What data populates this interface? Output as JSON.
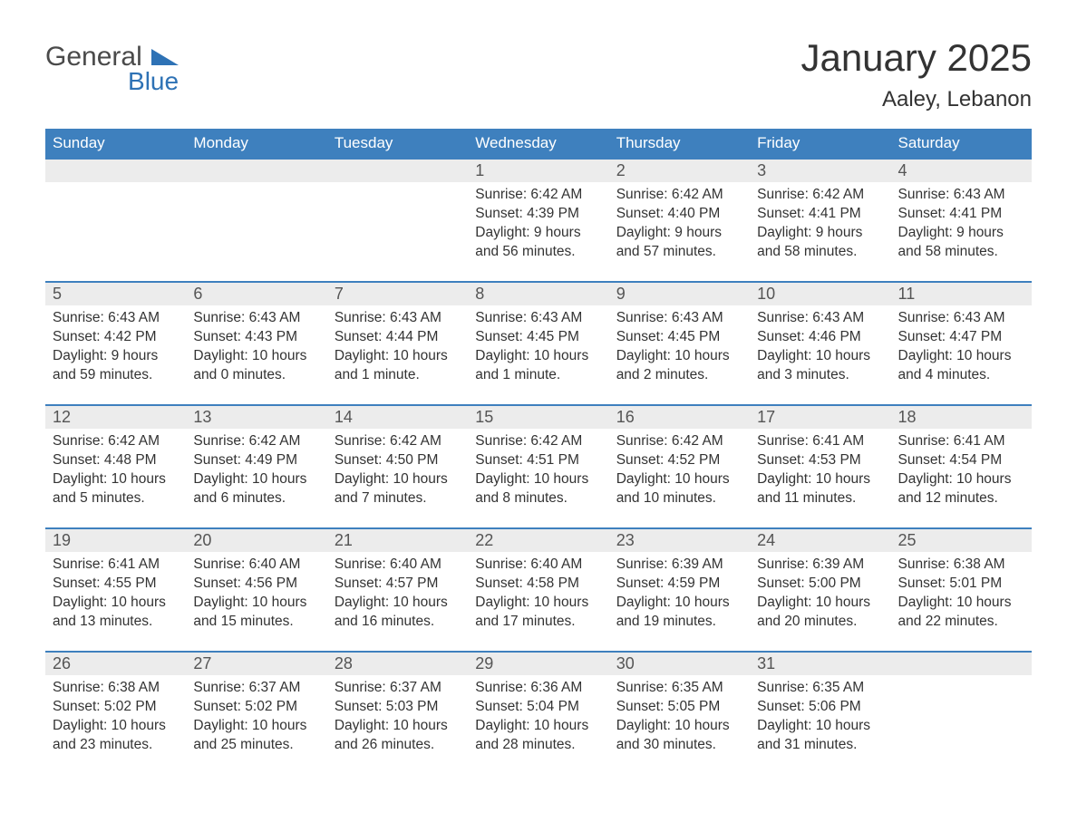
{
  "logo": {
    "word1": "General",
    "word2": "Blue"
  },
  "title": "January 2025",
  "location": "Aaley, Lebanon",
  "colors": {
    "header_bg": "#3e80be",
    "header_text": "#ffffff",
    "daynum_bg": "#ececec",
    "row_border": "#3e80be",
    "body_text": "#333333",
    "logo_gray": "#4a4a4a",
    "logo_blue": "#2e72b5",
    "page_bg": "#ffffff"
  },
  "weekdays": [
    "Sunday",
    "Monday",
    "Tuesday",
    "Wednesday",
    "Thursday",
    "Friday",
    "Saturday"
  ],
  "weeks": [
    [
      null,
      null,
      null,
      {
        "n": "1",
        "sr": "Sunrise: 6:42 AM",
        "ss": "Sunset: 4:39 PM",
        "d1": "Daylight: 9 hours",
        "d2": "and 56 minutes."
      },
      {
        "n": "2",
        "sr": "Sunrise: 6:42 AM",
        "ss": "Sunset: 4:40 PM",
        "d1": "Daylight: 9 hours",
        "d2": "and 57 minutes."
      },
      {
        "n": "3",
        "sr": "Sunrise: 6:42 AM",
        "ss": "Sunset: 4:41 PM",
        "d1": "Daylight: 9 hours",
        "d2": "and 58 minutes."
      },
      {
        "n": "4",
        "sr": "Sunrise: 6:43 AM",
        "ss": "Sunset: 4:41 PM",
        "d1": "Daylight: 9 hours",
        "d2": "and 58 minutes."
      }
    ],
    [
      {
        "n": "5",
        "sr": "Sunrise: 6:43 AM",
        "ss": "Sunset: 4:42 PM",
        "d1": "Daylight: 9 hours",
        "d2": "and 59 minutes."
      },
      {
        "n": "6",
        "sr": "Sunrise: 6:43 AM",
        "ss": "Sunset: 4:43 PM",
        "d1": "Daylight: 10 hours",
        "d2": "and 0 minutes."
      },
      {
        "n": "7",
        "sr": "Sunrise: 6:43 AM",
        "ss": "Sunset: 4:44 PM",
        "d1": "Daylight: 10 hours",
        "d2": "and 1 minute."
      },
      {
        "n": "8",
        "sr": "Sunrise: 6:43 AM",
        "ss": "Sunset: 4:45 PM",
        "d1": "Daylight: 10 hours",
        "d2": "and 1 minute."
      },
      {
        "n": "9",
        "sr": "Sunrise: 6:43 AM",
        "ss": "Sunset: 4:45 PM",
        "d1": "Daylight: 10 hours",
        "d2": "and 2 minutes."
      },
      {
        "n": "10",
        "sr": "Sunrise: 6:43 AM",
        "ss": "Sunset: 4:46 PM",
        "d1": "Daylight: 10 hours",
        "d2": "and 3 minutes."
      },
      {
        "n": "11",
        "sr": "Sunrise: 6:43 AM",
        "ss": "Sunset: 4:47 PM",
        "d1": "Daylight: 10 hours",
        "d2": "and 4 minutes."
      }
    ],
    [
      {
        "n": "12",
        "sr": "Sunrise: 6:42 AM",
        "ss": "Sunset: 4:48 PM",
        "d1": "Daylight: 10 hours",
        "d2": "and 5 minutes."
      },
      {
        "n": "13",
        "sr": "Sunrise: 6:42 AM",
        "ss": "Sunset: 4:49 PM",
        "d1": "Daylight: 10 hours",
        "d2": "and 6 minutes."
      },
      {
        "n": "14",
        "sr": "Sunrise: 6:42 AM",
        "ss": "Sunset: 4:50 PM",
        "d1": "Daylight: 10 hours",
        "d2": "and 7 minutes."
      },
      {
        "n": "15",
        "sr": "Sunrise: 6:42 AM",
        "ss": "Sunset: 4:51 PM",
        "d1": "Daylight: 10 hours",
        "d2": "and 8 minutes."
      },
      {
        "n": "16",
        "sr": "Sunrise: 6:42 AM",
        "ss": "Sunset: 4:52 PM",
        "d1": "Daylight: 10 hours",
        "d2": "and 10 minutes."
      },
      {
        "n": "17",
        "sr": "Sunrise: 6:41 AM",
        "ss": "Sunset: 4:53 PM",
        "d1": "Daylight: 10 hours",
        "d2": "and 11 minutes."
      },
      {
        "n": "18",
        "sr": "Sunrise: 6:41 AM",
        "ss": "Sunset: 4:54 PM",
        "d1": "Daylight: 10 hours",
        "d2": "and 12 minutes."
      }
    ],
    [
      {
        "n": "19",
        "sr": "Sunrise: 6:41 AM",
        "ss": "Sunset: 4:55 PM",
        "d1": "Daylight: 10 hours",
        "d2": "and 13 minutes."
      },
      {
        "n": "20",
        "sr": "Sunrise: 6:40 AM",
        "ss": "Sunset: 4:56 PM",
        "d1": "Daylight: 10 hours",
        "d2": "and 15 minutes."
      },
      {
        "n": "21",
        "sr": "Sunrise: 6:40 AM",
        "ss": "Sunset: 4:57 PM",
        "d1": "Daylight: 10 hours",
        "d2": "and 16 minutes."
      },
      {
        "n": "22",
        "sr": "Sunrise: 6:40 AM",
        "ss": "Sunset: 4:58 PM",
        "d1": "Daylight: 10 hours",
        "d2": "and 17 minutes."
      },
      {
        "n": "23",
        "sr": "Sunrise: 6:39 AM",
        "ss": "Sunset: 4:59 PM",
        "d1": "Daylight: 10 hours",
        "d2": "and 19 minutes."
      },
      {
        "n": "24",
        "sr": "Sunrise: 6:39 AM",
        "ss": "Sunset: 5:00 PM",
        "d1": "Daylight: 10 hours",
        "d2": "and 20 minutes."
      },
      {
        "n": "25",
        "sr": "Sunrise: 6:38 AM",
        "ss": "Sunset: 5:01 PM",
        "d1": "Daylight: 10 hours",
        "d2": "and 22 minutes."
      }
    ],
    [
      {
        "n": "26",
        "sr": "Sunrise: 6:38 AM",
        "ss": "Sunset: 5:02 PM",
        "d1": "Daylight: 10 hours",
        "d2": "and 23 minutes."
      },
      {
        "n": "27",
        "sr": "Sunrise: 6:37 AM",
        "ss": "Sunset: 5:02 PM",
        "d1": "Daylight: 10 hours",
        "d2": "and 25 minutes."
      },
      {
        "n": "28",
        "sr": "Sunrise: 6:37 AM",
        "ss": "Sunset: 5:03 PM",
        "d1": "Daylight: 10 hours",
        "d2": "and 26 minutes."
      },
      {
        "n": "29",
        "sr": "Sunrise: 6:36 AM",
        "ss": "Sunset: 5:04 PM",
        "d1": "Daylight: 10 hours",
        "d2": "and 28 minutes."
      },
      {
        "n": "30",
        "sr": "Sunrise: 6:35 AM",
        "ss": "Sunset: 5:05 PM",
        "d1": "Daylight: 10 hours",
        "d2": "and 30 minutes."
      },
      {
        "n": "31",
        "sr": "Sunrise: 6:35 AM",
        "ss": "Sunset: 5:06 PM",
        "d1": "Daylight: 10 hours",
        "d2": "and 31 minutes."
      },
      null
    ]
  ]
}
